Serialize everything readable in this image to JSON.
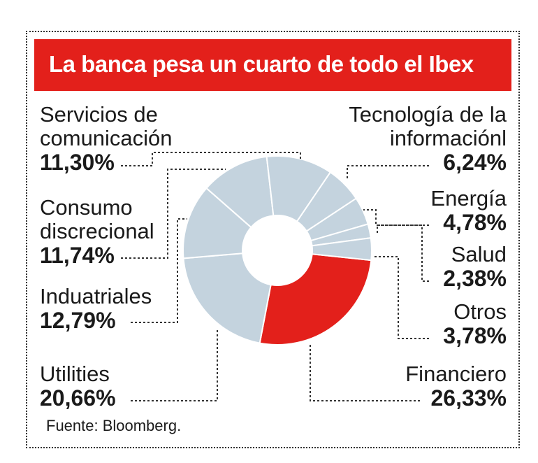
{
  "title": "La banca pesa un cuarto de todo el Ibex",
  "source": "Fuente: Bloomberg.",
  "colors": {
    "accent": "#e3201b",
    "slice": "#c4d3de",
    "highlight": "#e3201b"
  },
  "labels": {
    "servicios": {
      "line1": "Servicios de",
      "line2": "comunicación",
      "pct": "11,30%"
    },
    "consumo": {
      "line1": "Consumo",
      "line2": "discrecional",
      "pct": "11,74%"
    },
    "industriales": {
      "line1": "Induatriales",
      "pct": "12,79%"
    },
    "utilities": {
      "line1": "Utilities",
      "pct": "20,66%"
    },
    "tecnologia": {
      "line1": "Tecnología de la",
      "line2": "informaciónl",
      "pct": "6,24%"
    },
    "energia": {
      "line1": "Energía",
      "pct": "4,78%"
    },
    "salud": {
      "line1": "Salud",
      "pct": "2,38%"
    },
    "otros": {
      "line1": "Otros",
      "pct": "3,78%"
    },
    "financiero": {
      "line1": "Financiero",
      "pct": "26,33%"
    }
  },
  "chart_data": {
    "type": "pie",
    "variant": "donut",
    "title": "La banca pesa un cuarto de todo el Ibex",
    "unit": "%",
    "categories": [
      "Financiero",
      "Utilities",
      "Induatriales",
      "Consumo discrecional",
      "Servicios de comunicación",
      "Tecnología de la informaciónl",
      "Energía",
      "Salud",
      "Otros"
    ],
    "values": [
      26.33,
      20.66,
      12.79,
      11.74,
      11.3,
      6.24,
      4.78,
      2.38,
      3.78
    ],
    "highlight": "Financiero"
  }
}
